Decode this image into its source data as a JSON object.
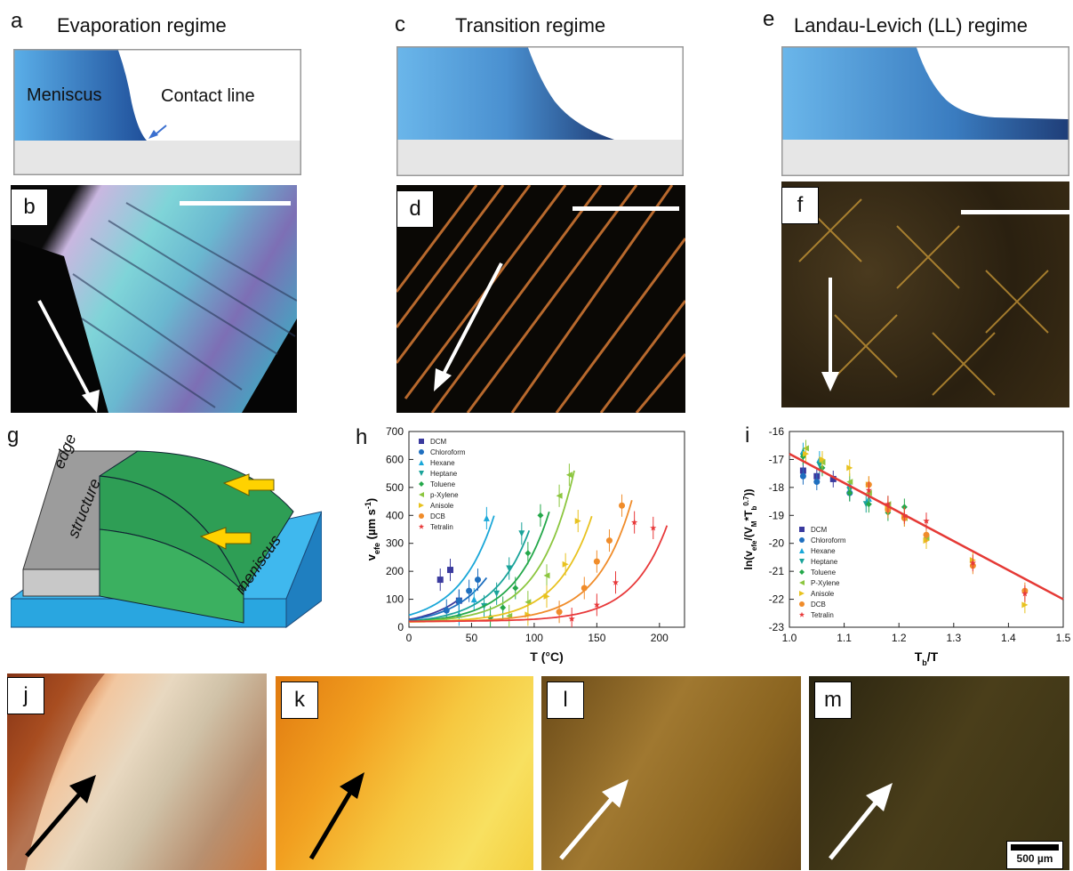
{
  "panels": {
    "a": {
      "label": "a",
      "title": "Evaporation regime",
      "meniscus_label": "Meniscus",
      "contact_label": "Contact line"
    },
    "c": {
      "label": "c",
      "title": "Transition regime"
    },
    "e": {
      "label": "e",
      "title": "Landau-Levich (LL) regime"
    },
    "b": {
      "label": "b"
    },
    "d": {
      "label": "d"
    },
    "f": {
      "label": "f"
    },
    "g": {
      "label": "g",
      "edge_text_1": "edge",
      "edge_text_2": "structure",
      "meniscus_text": "meniscus"
    },
    "h": {
      "label": "h"
    },
    "i": {
      "label": "i"
    },
    "j": {
      "label": "j"
    },
    "k": {
      "label": "k"
    },
    "l": {
      "label": "l"
    },
    "m": {
      "label": "m",
      "scalebar_text": "500 µm"
    }
  },
  "colors": {
    "meniscus": "#4a9be0",
    "substrate": "#e6e6e6",
    "fit_line": "#e53935",
    "base_blue": "#2aa6d8",
    "film_green": "#2e9e55",
    "arrow_yellow": "#ffd200"
  },
  "chart_data": [
    {
      "id": "h",
      "type": "scatter",
      "xlabel": "T (°C)",
      "ylabel": "v",
      "ylabel_sub": "efe",
      "ylabel_unit": "(µm s",
      "ylabel_unit_sup": "-1",
      "ylabel_unit_close": ")",
      "xlim": [
        0,
        220
      ],
      "ylim": [
        0,
        700
      ],
      "xticks": [
        "0",
        "50",
        "100",
        "150",
        "200"
      ],
      "yticks": [
        "0",
        "100",
        "200",
        "300",
        "400",
        "500",
        "600",
        "700"
      ],
      "series": [
        {
          "name": "DCM",
          "color": "#3a3a9e",
          "marker": "square",
          "x": [
            25,
            33,
            40
          ],
          "y": [
            170,
            205,
            95
          ],
          "fit_end": 40
        },
        {
          "name": "Chloroform",
          "color": "#1f6fbf",
          "marker": "circle",
          "x": [
            30,
            40,
            48,
            55
          ],
          "y": [
            60,
            95,
            130,
            170
          ],
          "fit_end": 62
        },
        {
          "name": "Hexane",
          "color": "#1aa7d8",
          "marker": "triangle-up",
          "x": [
            40,
            52,
            62
          ],
          "y": [
            45,
            100,
            390
          ],
          "fit_end": 68
        },
        {
          "name": "Heptane",
          "color": "#1aa39a",
          "marker": "triangle-down",
          "x": [
            60,
            70,
            80,
            90
          ],
          "y": [
            75,
            120,
            210,
            335
          ],
          "fit_end": 96
        },
        {
          "name": "Toluene",
          "color": "#24a84a",
          "marker": "diamond",
          "x": [
            65,
            75,
            85,
            95,
            105
          ],
          "y": [
            35,
            70,
            140,
            265,
            400
          ],
          "fit_end": 112
        },
        {
          "name": "p-Xylene",
          "color": "#8cc63f",
          "marker": "triangle-left",
          "x": [
            80,
            95,
            110,
            120,
            128
          ],
          "y": [
            40,
            90,
            185,
            470,
            545
          ],
          "fit_end": 132
        },
        {
          "name": "Anisole",
          "color": "#e8c21f",
          "marker": "triangle-right",
          "x": [
            95,
            110,
            125,
            135
          ],
          "y": [
            45,
            110,
            225,
            380
          ],
          "fit_end": 146
        },
        {
          "name": "DCB",
          "color": "#f08c2a",
          "marker": "hexagon",
          "x": [
            120,
            140,
            150,
            160,
            170
          ],
          "y": [
            55,
            140,
            235,
            310,
            435
          ],
          "fit_end": 178
        },
        {
          "name": "Tetralin",
          "color": "#e8393a",
          "marker": "star",
          "x": [
            130,
            150,
            165,
            180,
            195
          ],
          "y": [
            30,
            80,
            160,
            375,
            355
          ],
          "fit_end": 207
        }
      ]
    },
    {
      "id": "i",
      "type": "scatter",
      "xlabel": "T",
      "xlabel_sub": "b",
      "xlabel_rest": "/T",
      "ylabel": "ln(v",
      "ylabel_sub1": "efe",
      "ylabel_mid": "/(V",
      "ylabel_sub2": "M",
      "ylabel_mid2": "*T",
      "ylabel_sub3": "b",
      "ylabel_sup": "0.7",
      "ylabel_end": "))",
      "xlim": [
        1.0,
        1.5
      ],
      "ylim": [
        -23,
        -16
      ],
      "xticks": [
        "1.0",
        "1.1",
        "1.2",
        "1.3",
        "1.4",
        "1.5"
      ],
      "yticks": [
        "-16",
        "-17",
        "-18",
        "-19",
        "-20",
        "-21",
        "-22",
        "-23"
      ],
      "fit_line": {
        "x": [
          1.0,
          1.5
        ],
        "y": [
          -16.8,
          -22.0
        ]
      },
      "series": [
        {
          "name": "DCM",
          "color": "#3a3a9e",
          "marker": "square",
          "x": [
            1.025,
            1.05,
            1.08
          ],
          "y": [
            -17.4,
            -17.6,
            -17.7
          ]
        },
        {
          "name": "Chloroform",
          "color": "#1f6fbf",
          "marker": "circle",
          "x": [
            1.025,
            1.05,
            1.11
          ],
          "y": [
            -17.6,
            -17.8,
            -18.2
          ]
        },
        {
          "name": "Hexane",
          "color": "#1aa7d8",
          "marker": "triangle-up",
          "x": [
            1.025,
            1.055,
            1.11,
            1.145
          ],
          "y": [
            -16.7,
            -17.0,
            -17.9,
            -18.4
          ]
        },
        {
          "name": "Heptane",
          "color": "#1aa39a",
          "marker": "triangle-down",
          "x": [
            1.025,
            1.055,
            1.11,
            1.14,
            1.18
          ],
          "y": [
            -16.9,
            -17.2,
            -18.1,
            -18.6,
            -18.8
          ]
        },
        {
          "name": "Toluene",
          "color": "#24a84a",
          "marker": "diamond",
          "x": [
            1.025,
            1.06,
            1.11,
            1.145,
            1.18,
            1.21
          ],
          "y": [
            -16.9,
            -17.3,
            -18.2,
            -18.6,
            -18.9,
            -18.7
          ]
        },
        {
          "name": "P-Xylene",
          "color": "#8cc63f",
          "marker": "triangle-left",
          "x": [
            1.03,
            1.06,
            1.11,
            1.145,
            1.18,
            1.21,
            1.25
          ],
          "y": [
            -16.6,
            -17.1,
            -17.8,
            -18.2,
            -18.6,
            -19.1,
            -19.8
          ]
        },
        {
          "name": "Anisole",
          "color": "#e8c21f",
          "marker": "triangle-right",
          "x": [
            1.03,
            1.06,
            1.11,
            1.145,
            1.18,
            1.21,
            1.25,
            1.335,
            1.43
          ],
          "y": [
            -16.8,
            -17.0,
            -17.3,
            -17.9,
            -18.7,
            -19.0,
            -19.9,
            -20.6,
            -22.2
          ]
        },
        {
          "name": "DCB",
          "color": "#f08c2a",
          "marker": "hexagon",
          "x": [
            1.145,
            1.18,
            1.21,
            1.25,
            1.335,
            1.43
          ],
          "y": [
            -17.9,
            -18.8,
            -19.1,
            -19.7,
            -20.8,
            -21.7
          ]
        },
        {
          "name": "Tetralin",
          "color": "#e8393a",
          "marker": "star",
          "x": [
            1.145,
            1.18,
            1.21,
            1.25,
            1.335,
            1.43
          ],
          "y": [
            -18.1,
            -18.6,
            -19.0,
            -19.2,
            -20.7,
            -21.8
          ]
        }
      ]
    }
  ]
}
